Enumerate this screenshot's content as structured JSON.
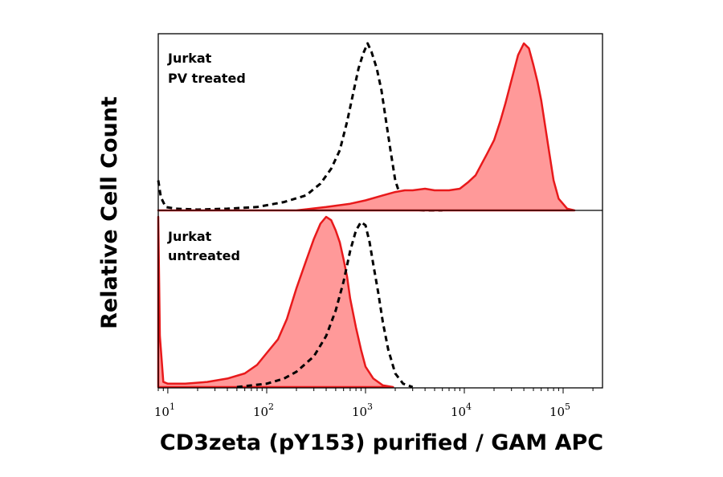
{
  "chart_data": {
    "type": "area",
    "ylabel": "Relative Cell Count",
    "xlabel": "CD3zeta (pY153) purified / GAM APC",
    "x_scale": "log10",
    "xlim": [
      8,
      250000
    ],
    "x_tick_labels": [
      {
        "value": 10,
        "base": "10",
        "exp": "1"
      },
      {
        "value": 100,
        "base": "10",
        "exp": "2"
      },
      {
        "value": 1000,
        "base": "10",
        "exp": "3"
      },
      {
        "value": 10000,
        "base": "10",
        "exp": "4"
      },
      {
        "value": 100000,
        "base": "10",
        "exp": "5"
      }
    ],
    "grid": false,
    "colors": {
      "filled": "#ff9999",
      "filled_stroke": "#e8191b",
      "dashed": "#000000"
    },
    "panels": [
      {
        "label_lines": [
          "Jurkat",
          "PV treated"
        ],
        "series": [
          {
            "style": "dashed",
            "x": [
              8,
              8.5,
              9.5,
              12,
              20,
              40,
              80,
              150,
              250,
              350,
              450,
              550,
              650,
              750,
              850,
              950,
              1050,
              1150,
              1300,
              1450,
              1600,
              1800,
              2000,
              2300,
              2600,
              3000,
              4000,
              6000
            ],
            "y": [
              0.18,
              0.08,
              0.02,
              0.01,
              0.005,
              0.01,
              0.02,
              0.05,
              0.09,
              0.16,
              0.25,
              0.36,
              0.53,
              0.7,
              0.85,
              0.94,
              1.0,
              0.95,
              0.85,
              0.72,
              0.55,
              0.35,
              0.18,
              0.07,
              0.02,
              0.005,
              0,
              0
            ]
          },
          {
            "style": "filled",
            "x": [
              8,
              200,
              400,
              700,
              1000,
              1500,
              2000,
              2500,
              3000,
              4000,
              5000,
              7000,
              9000,
              11000,
              13000,
              15000,
              17000,
              20000,
              23000,
              26000,
              30000,
              35000,
              40000,
              45000,
              50000,
              55000,
              60000,
              70000,
              80000,
              90000,
              110000,
              130000
            ],
            "y": [
              0,
              0,
              0.02,
              0.04,
              0.06,
              0.09,
              0.11,
              0.12,
              0.12,
              0.13,
              0.12,
              0.12,
              0.13,
              0.17,
              0.21,
              0.28,
              0.34,
              0.42,
              0.53,
              0.64,
              0.78,
              0.93,
              1.0,
              0.97,
              0.87,
              0.77,
              0.66,
              0.4,
              0.18,
              0.07,
              0.01,
              0
            ]
          }
        ]
      },
      {
        "label_lines": [
          "Jurkat",
          "untreated"
        ],
        "series": [
          {
            "style": "filled",
            "x": [
              8,
              8.3,
              9,
              10,
              15,
              25,
              40,
              60,
              80,
              100,
              130,
              160,
              200,
              250,
              300,
              350,
              400,
              450,
              500,
              550,
              600,
              650,
              700,
              800,
              900,
              1000,
              1200,
              1500,
              1900
            ],
            "y": [
              1.0,
              0.3,
              0.03,
              0.02,
              0.02,
              0.03,
              0.05,
              0.08,
              0.13,
              0.2,
              0.28,
              0.4,
              0.58,
              0.74,
              0.87,
              0.96,
              1.0,
              0.98,
              0.92,
              0.85,
              0.75,
              0.65,
              0.52,
              0.35,
              0.22,
              0.12,
              0.05,
              0.01,
              0
            ]
          },
          {
            "style": "dashed",
            "x": [
              50,
              100,
              150,
              200,
              300,
              400,
              500,
              600,
              700,
              800,
              900,
              1000,
              1100,
              1200,
              1350,
              1500,
              1700,
              2000,
              2400,
              3000
            ],
            "y": [
              0,
              0.02,
              0.05,
              0.09,
              0.18,
              0.3,
              0.45,
              0.62,
              0.8,
              0.92,
              0.97,
              0.95,
              0.85,
              0.72,
              0.55,
              0.38,
              0.22,
              0.08,
              0.02,
              0
            ]
          }
        ]
      }
    ]
  }
}
